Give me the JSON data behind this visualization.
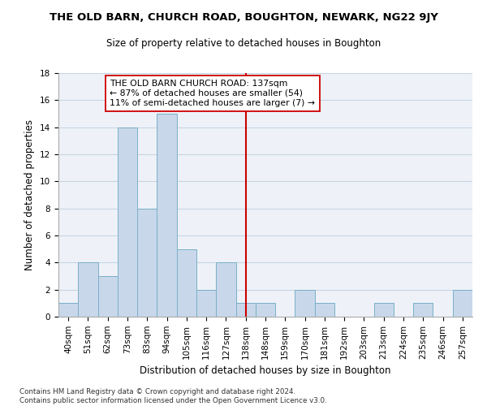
{
  "title": "THE OLD BARN, CHURCH ROAD, BOUGHTON, NEWARK, NG22 9JY",
  "subtitle": "Size of property relative to detached houses in Boughton",
  "xlabel": "Distribution of detached houses by size in Boughton",
  "ylabel": "Number of detached properties",
  "categories": [
    "40sqm",
    "51sqm",
    "62sqm",
    "73sqm",
    "83sqm",
    "94sqm",
    "105sqm",
    "116sqm",
    "127sqm",
    "138sqm",
    "148sqm",
    "159sqm",
    "170sqm",
    "181sqm",
    "192sqm",
    "203sqm",
    "213sqm",
    "224sqm",
    "235sqm",
    "246sqm",
    "257sqm"
  ],
  "values": [
    1,
    4,
    3,
    14,
    8,
    15,
    5,
    2,
    4,
    1,
    1,
    0,
    2,
    1,
    0,
    0,
    1,
    0,
    1,
    0,
    2
  ],
  "bar_color": "#c8d8ea",
  "bar_edgecolor": "#7aafc8",
  "bar_linewidth": 0.7,
  "reference_line_index": 9,
  "reference_line_color": "#cc0000",
  "annotation_text": "THE OLD BARN CHURCH ROAD: 137sqm\n← 87% of detached houses are smaller (54)\n11% of semi-detached houses are larger (7) →",
  "annotation_box_color": "#ffffff",
  "annotation_box_edgecolor": "#cc0000",
  "ylim": [
    0,
    18
  ],
  "yticks": [
    0,
    2,
    4,
    6,
    8,
    10,
    12,
    14,
    16,
    18
  ],
  "grid_color": "#c8d4e4",
  "background_color": "#eef2f8",
  "title_fontsize": 9.5,
  "subtitle_fontsize": 8.5,
  "xlabel_fontsize": 8.5,
  "ylabel_fontsize": 8.5,
  "tick_fontsize": 7.5,
  "annotation_fontsize": 7.8,
  "footer_text": "Contains HM Land Registry data © Crown copyright and database right 2024.\nContains public sector information licensed under the Open Government Licence v3.0."
}
